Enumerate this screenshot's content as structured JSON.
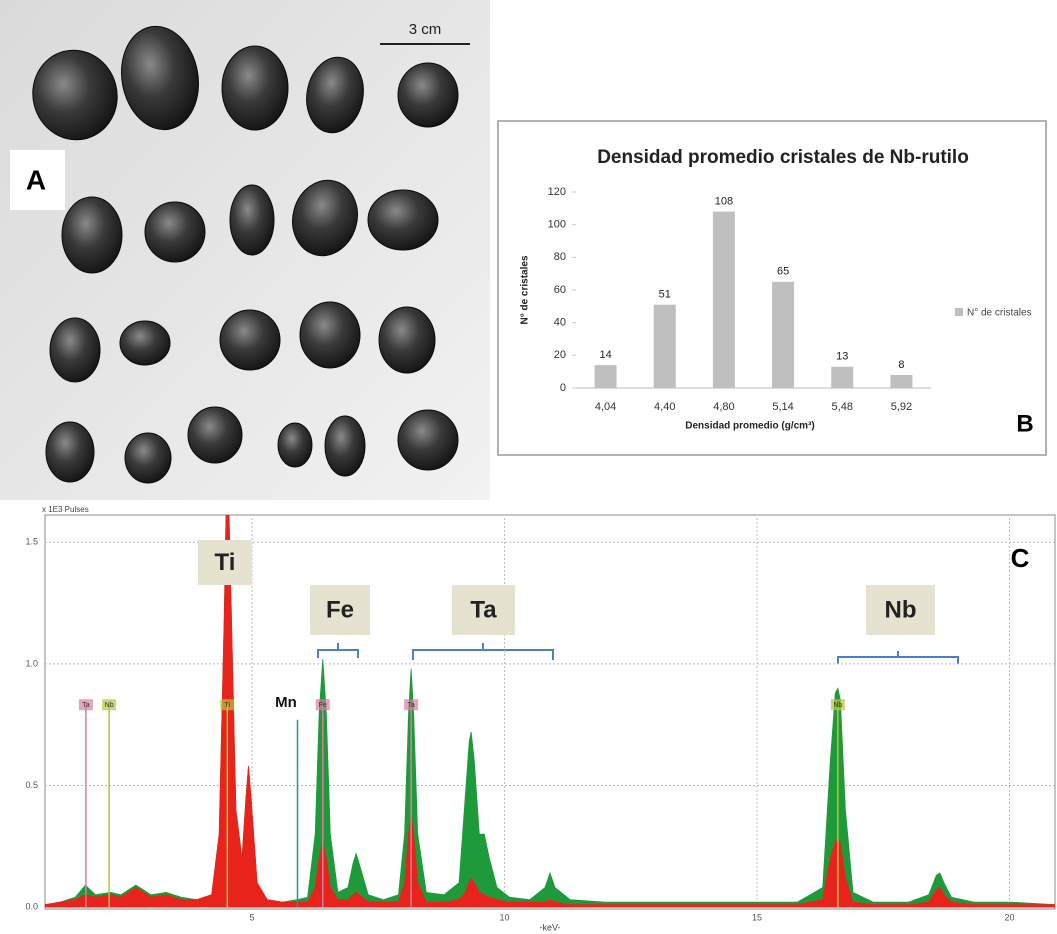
{
  "photo": {
    "label": "A",
    "scale_bar": "3 cm"
  },
  "chart_data": [
    {
      "type": "bar",
      "panel_label": "B",
      "title": "Densidad promedio cristales de Nb-rutilo",
      "x_label": "Densidad promedio (g/cm³)",
      "y_label": "N° de cristales",
      "categories": [
        "4,04",
        "4,40",
        "4,80",
        "5,14",
        "5,48",
        "5,92"
      ],
      "series": [
        {
          "name": "N° de cristales",
          "color": "#bfbfbf",
          "values": [
            14,
            51,
            108,
            65,
            13,
            8
          ]
        }
      ],
      "ylim": [
        0,
        120
      ],
      "yticks": [
        0,
        20,
        40,
        60,
        80,
        100,
        120
      ],
      "legend": "right"
    },
    {
      "type": "area",
      "panel_label": "C",
      "y_label": "x 1E3 Pulses",
      "x_label": "-keV-",
      "xlim": [
        0.9,
        20.9
      ],
      "ylim": [
        0,
        1.6
      ],
      "grid": true,
      "xticks": [
        5,
        10,
        15,
        20
      ],
      "yticks": [
        {
          "value": 0,
          "label": "0.0"
        },
        0.5,
        {
          "value": 1,
          "label": "1.0"
        },
        1.5
      ],
      "x": [
        0.9,
        1.2,
        1.5,
        1.7,
        1.9,
        2.2,
        2.4,
        2.7,
        3.0,
        3.3,
        3.6,
        3.9,
        4.2,
        4.35,
        4.45,
        4.51,
        4.58,
        4.68,
        4.8,
        4.88,
        4.93,
        4.98,
        5.1,
        5.3,
        5.6,
        5.9,
        6.1,
        6.25,
        6.33,
        6.4,
        6.47,
        6.55,
        6.7,
        6.9,
        7.0,
        7.06,
        7.12,
        7.3,
        7.6,
        7.9,
        8.02,
        8.1,
        8.15,
        8.2,
        8.28,
        8.45,
        8.8,
        9.1,
        9.22,
        9.3,
        9.34,
        9.4,
        9.5,
        9.6,
        9.7,
        9.85,
        10.1,
        10.5,
        10.8,
        10.9,
        11.0,
        11.3,
        12,
        13,
        14,
        15,
        15.8,
        16.3,
        16.45,
        16.55,
        16.6,
        16.65,
        16.75,
        16.9,
        17.3,
        18,
        18.4,
        18.55,
        18.62,
        18.7,
        18.85,
        19.3,
        20,
        20.9
      ],
      "series": [
        {
          "color": "#1e9a3a",
          "values": [
            0.01,
            0.02,
            0.04,
            0.09,
            0.05,
            0.06,
            0.05,
            0.09,
            0.05,
            0.06,
            0.04,
            0.03,
            0.05,
            0.3,
            1.2,
            1.9,
            1.3,
            0.4,
            0.2,
            0.45,
            0.58,
            0.45,
            0.1,
            0.03,
            0.02,
            0.03,
            0.04,
            0.3,
            0.8,
            1.02,
            0.8,
            0.3,
            0.06,
            0.08,
            0.18,
            0.22,
            0.18,
            0.05,
            0.03,
            0.05,
            0.3,
            0.8,
            0.98,
            0.8,
            0.3,
            0.06,
            0.05,
            0.1,
            0.45,
            0.68,
            0.72,
            0.6,
            0.3,
            0.3,
            0.2,
            0.08,
            0.04,
            0.03,
            0.08,
            0.14,
            0.08,
            0.03,
            0.02,
            0.02,
            0.02,
            0.02,
            0.02,
            0.08,
            0.6,
            0.88,
            0.9,
            0.85,
            0.4,
            0.06,
            0.02,
            0.02,
            0.05,
            0.13,
            0.14,
            0.1,
            0.04,
            0.02,
            0.02,
            0.01
          ]
        },
        {
          "color": "#e8231c",
          "values": [
            0.01,
            0.02,
            0.03,
            0.05,
            0.04,
            0.05,
            0.04,
            0.08,
            0.04,
            0.05,
            0.03,
            0.03,
            0.05,
            0.3,
            1.2,
            1.9,
            1.3,
            0.4,
            0.2,
            0.45,
            0.58,
            0.45,
            0.1,
            0.03,
            0.02,
            0.02,
            0.02,
            0.08,
            0.2,
            0.27,
            0.2,
            0.08,
            0.03,
            0.03,
            0.05,
            0.06,
            0.05,
            0.02,
            0.02,
            0.02,
            0.1,
            0.3,
            0.38,
            0.3,
            0.1,
            0.02,
            0.02,
            0.03,
            0.06,
            0.1,
            0.12,
            0.1,
            0.06,
            0.05,
            0.04,
            0.03,
            0.02,
            0.02,
            0.02,
            0.03,
            0.02,
            0.01,
            0.01,
            0.01,
            0.01,
            0.01,
            0.01,
            0.03,
            0.2,
            0.27,
            0.28,
            0.26,
            0.12,
            0.02,
            0.01,
            0.01,
            0.02,
            0.07,
            0.08,
            0.05,
            0.02,
            0.01,
            0.01,
            0.01
          ]
        }
      ],
      "markers": [
        {
          "label": "Ta",
          "x": 1.71,
          "height": 0.83,
          "color": "#d47fa0"
        },
        {
          "label": "Nb",
          "x": 2.17,
          "height": 0.83,
          "color": "#b8c43a"
        },
        {
          "label": "Ti",
          "x": 4.51,
          "height": 0.83,
          "color": "#b8c43a"
        },
        {
          "x": 5.9,
          "height": 0.77,
          "color": "#1a9a8a"
        },
        {
          "label": "Fe",
          "x": 6.4,
          "height": 0.83,
          "color": "#d47fa0"
        },
        {
          "label": "Ta",
          "x": 8.15,
          "height": 0.83,
          "color": "#d47fa0"
        },
        {
          "label": "Nb",
          "x": 16.6,
          "height": 0.83,
          "color": "#b8c43a"
        }
      ],
      "element_labels": [
        "Ti",
        "Fe",
        "Ta",
        "Nb"
      ],
      "mn_label": "Mn"
    }
  ]
}
